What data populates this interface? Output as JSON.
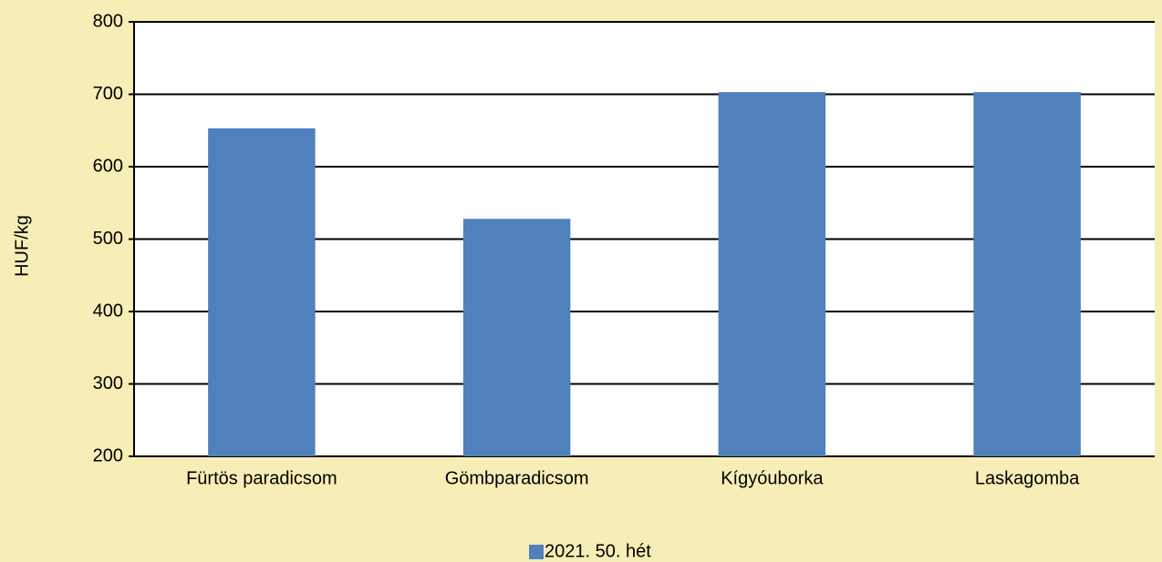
{
  "chart_data": {
    "type": "bar",
    "y_label": "HUF/kg",
    "categories": [
      "Fürtös paradicsom",
      "Gömbparadicsom",
      "Kígyóuborka",
      "Laskagomba"
    ],
    "series": [
      {
        "name": "2021. 50. hét",
        "color": "#4f81bd",
        "values": [
          653,
          528,
          703,
          703
        ]
      }
    ],
    "ylim": [
      200,
      800
    ],
    "yticks": [
      200,
      300,
      400,
      500,
      600,
      700,
      800
    ],
    "grid": true,
    "legend": "bottom"
  }
}
